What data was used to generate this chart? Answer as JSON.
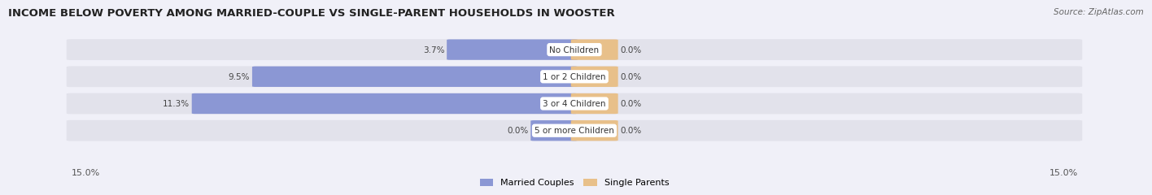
{
  "title": "INCOME BELOW POVERTY AMONG MARRIED-COUPLE VS SINGLE-PARENT HOUSEHOLDS IN WOOSTER",
  "source": "Source: ZipAtlas.com",
  "categories": [
    "No Children",
    "1 or 2 Children",
    "3 or 4 Children",
    "5 or more Children"
  ],
  "married_values": [
    3.7,
    9.5,
    11.3,
    0.0
  ],
  "single_values": [
    0.0,
    0.0,
    0.0,
    0.0
  ],
  "single_stub": 1.2,
  "max_val": 15.0,
  "married_color": "#8b97d4",
  "single_color": "#e8c08a",
  "bar_bg_color": "#e2e2eb",
  "label_bg_color": "#ffffff",
  "married_label": "Married Couples",
  "single_label": "Single Parents",
  "axis_label_left": "15.0%",
  "axis_label_right": "15.0%",
  "title_fontsize": 9.5,
  "source_fontsize": 7.5,
  "label_fontsize": 8,
  "category_fontsize": 7.5,
  "value_fontsize": 7.5,
  "background_color": "#f0f0f8"
}
